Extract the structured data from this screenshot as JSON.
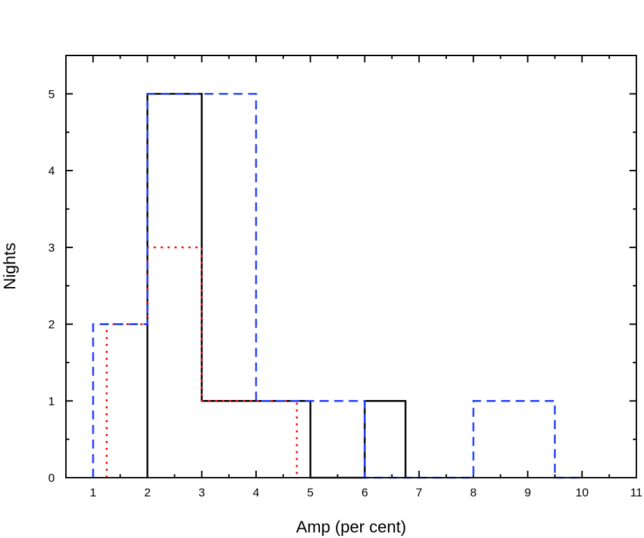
{
  "chart_data": {
    "type": "histogram",
    "xlabel": "Amp (per cent)",
    "ylabel": "Nights",
    "xlim": [
      0.5,
      11
    ],
    "ylim": [
      0,
      5.5
    ],
    "x_ticks": [
      1,
      2,
      3,
      4,
      5,
      6,
      7,
      8,
      9,
      10,
      11
    ],
    "y_ticks": [
      0,
      1,
      2,
      3,
      4,
      5
    ],
    "grid": false,
    "legend": "none",
    "series": [
      {
        "style": "solid",
        "color": "#000000",
        "bin_edges": [
          2,
          3,
          5,
          6,
          6.75
        ],
        "counts": [
          5,
          1,
          0,
          1
        ]
      },
      {
        "style": "dotted",
        "color": "#ff0000",
        "bin_edges": [
          1.25,
          2,
          3,
          4.75
        ],
        "counts": [
          2,
          3,
          1
        ]
      },
      {
        "style": "dashed",
        "color": "#1f3fff",
        "bin_edges": [
          1,
          2,
          4,
          6,
          8,
          9.5,
          10
        ],
        "counts": [
          2,
          5,
          1,
          0,
          1,
          0
        ]
      }
    ]
  }
}
